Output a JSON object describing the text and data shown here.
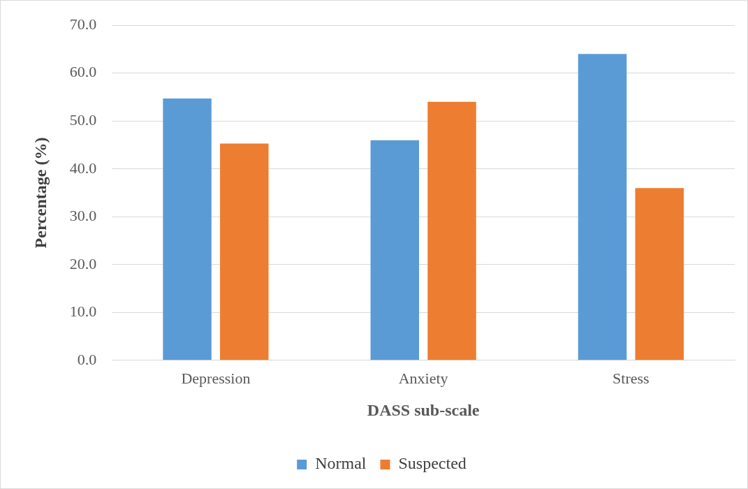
{
  "chart_data": {
    "type": "bar",
    "xlabel": "DASS sub-scale",
    "ylabel": "Percentage (%)",
    "categories": [
      "Depression",
      "Anxiety",
      "Stress"
    ],
    "series": [
      {
        "name": "Normal",
        "color": "#5b9bd5",
        "values": [
          54.7,
          46.0,
          64.0
        ]
      },
      {
        "name": "Suspected",
        "color": "#ed7d31",
        "values": [
          45.3,
          54.0,
          36.0
        ]
      }
    ],
    "ylim": [
      0,
      70
    ],
    "yticks": [
      {
        "value": 0,
        "label": "0.0"
      },
      {
        "value": 10,
        "label": "10.0"
      },
      {
        "value": 20,
        "label": "20.0"
      },
      {
        "value": 30,
        "label": "30.0"
      },
      {
        "value": 40,
        "label": "40.0"
      },
      {
        "value": 50,
        "label": "50.0"
      },
      {
        "value": 60,
        "label": "60.0"
      },
      {
        "value": 70,
        "label": "70.0"
      }
    ],
    "grid": "y",
    "legend": "bottom"
  }
}
